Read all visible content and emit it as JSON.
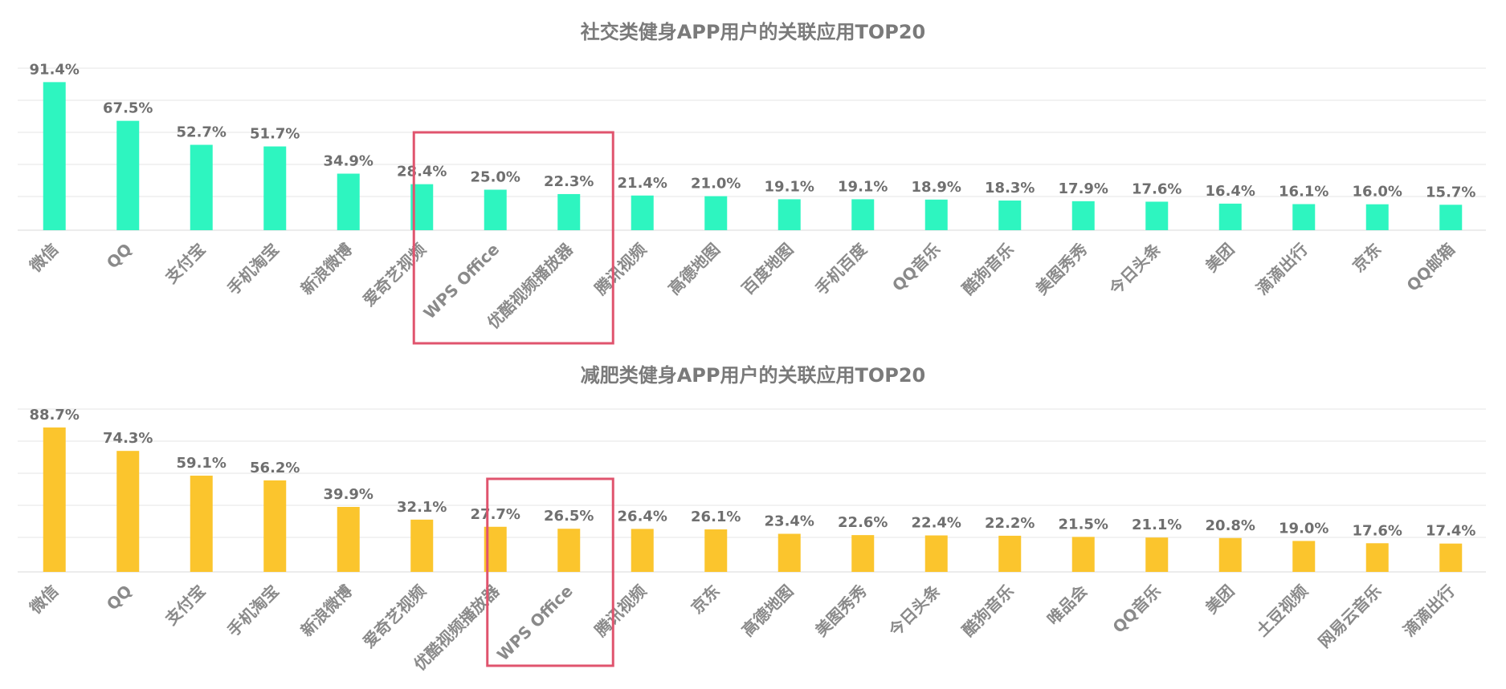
{
  "chart_data": [
    {
      "type": "bar",
      "title": "社交类健身APP用户的关联应用TOP20",
      "categories": [
        "微信",
        "QQ",
        "支付宝",
        "手机淘宝",
        "新浪微博",
        "爱奇艺视频",
        "WPS Office",
        "优酷视频播放器",
        "腾讯视频",
        "高德地图",
        "百度地图",
        "手机百度",
        "QQ音乐",
        "酷狗音乐",
        "美图秀秀",
        "今日头条",
        "美团",
        "滴滴出行",
        "京东",
        "QQ邮箱"
      ],
      "values": [
        91.4,
        67.5,
        52.7,
        51.7,
        34.9,
        28.4,
        25.0,
        22.3,
        21.4,
        21.0,
        19.1,
        19.1,
        18.9,
        18.3,
        17.9,
        17.6,
        16.4,
        16.1,
        16.0,
        15.7
      ],
      "value_labels": [
        "91.4%",
        "67.5%",
        "52.7%",
        "51.7%",
        "34.9%",
        "28.4%",
        "25.0%",
        "22.3%",
        "21.4%",
        "21.0%",
        "19.1%",
        "19.1%",
        "18.9%",
        "18.3%",
        "17.9%",
        "17.6%",
        "16.4%",
        "16.1%",
        "16.0%",
        "15.7%"
      ],
      "ylim": [
        0,
        100
      ],
      "grid": true,
      "highlight_categories": [
        "爱奇艺视频",
        "WPS Office",
        "优酷视频播放器"
      ],
      "bar_color": "#2ef5c0",
      "highlight_color": "#e0546e"
    },
    {
      "type": "bar",
      "title": "减肥类健身APP用户的关联应用TOP20",
      "categories": [
        "微信",
        "QQ",
        "支付宝",
        "手机淘宝",
        "新浪微博",
        "爱奇艺视频",
        "优酷视频播放器",
        "WPS Office",
        "腾讯视频",
        "京东",
        "高德地图",
        "美图秀秀",
        "今日头条",
        "酷狗音乐",
        "唯品会",
        "QQ音乐",
        "美团",
        "土豆视频",
        "网易云音乐",
        "滴滴出行"
      ],
      "values": [
        88.7,
        74.3,
        59.1,
        56.2,
        39.9,
        32.1,
        27.7,
        26.5,
        26.4,
        26.1,
        23.4,
        22.6,
        22.4,
        22.2,
        21.5,
        21.1,
        20.8,
        19.0,
        17.6,
        17.4
      ],
      "value_labels": [
        "88.7%",
        "74.3%",
        "59.1%",
        "56.2%",
        "39.9%",
        "32.1%",
        "27.7%",
        "26.5%",
        "26.4%",
        "26.1%",
        "23.4%",
        "22.6%",
        "22.4%",
        "22.2%",
        "21.5%",
        "21.1%",
        "20.8%",
        "19.0%",
        "17.6%",
        "17.4%"
      ],
      "ylim": [
        0,
        100
      ],
      "grid": true,
      "highlight_categories": [
        "优酷视频播放器",
        "WPS Office"
      ],
      "bar_color": "#fbc52d",
      "highlight_color": "#e0546e"
    }
  ]
}
